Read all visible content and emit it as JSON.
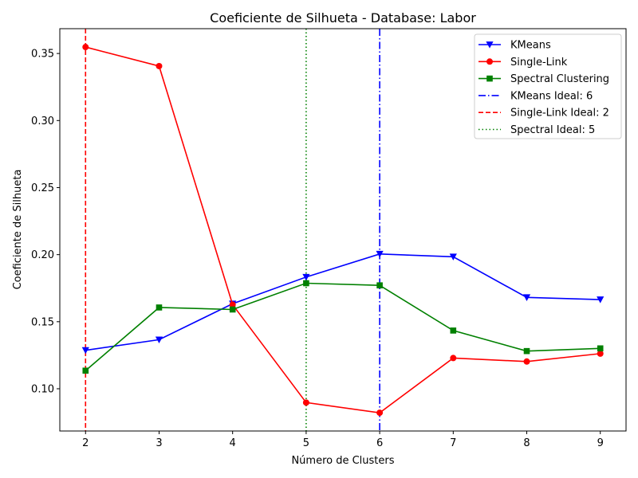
{
  "chart_data": {
    "type": "line",
    "title": "Coeficiente de Silhueta - Database: Labor",
    "xlabel": "Número de Clusters",
    "ylabel": "Coeficiente de Silhueta",
    "x": [
      2,
      3,
      4,
      5,
      6,
      7,
      8,
      9
    ],
    "xlim": [
      1.65,
      9.35
    ],
    "ylim": [
      0.0685,
      0.3685
    ],
    "xticks": [
      "2",
      "3",
      "4",
      "5",
      "6",
      "7",
      "8",
      "9"
    ],
    "yticks": [
      "0.10",
      "0.15",
      "0.20",
      "0.25",
      "0.30",
      "0.35"
    ],
    "grid": false,
    "legend_position": "top-right",
    "series": [
      {
        "name": "KMeans",
        "color": "#0000ff",
        "marker": "triangle-down",
        "values": [
          0.1287,
          0.1366,
          0.1634,
          0.1833,
          0.2005,
          0.1984,
          0.1681,
          0.1665
        ]
      },
      {
        "name": "Single-Link",
        "color": "#ff0000",
        "marker": "circle",
        "values": [
          0.3548,
          0.3406,
          0.1627,
          0.0897,
          0.0821,
          0.1229,
          0.1203,
          0.1262
        ]
      },
      {
        "name": "Spectral Clustering",
        "color": "#008000",
        "marker": "square",
        "values": [
          0.1135,
          0.1606,
          0.1591,
          0.1787,
          0.1771,
          0.1434,
          0.1281,
          0.1301
        ]
      }
    ],
    "vlines": [
      {
        "name": "KMeans Ideal: 6",
        "x": 6,
        "color": "#0000ff",
        "style": "dashdot"
      },
      {
        "name": "Single-Link Ideal: 2",
        "x": 2,
        "color": "#ff0000",
        "style": "dashed"
      },
      {
        "name": "Spectral Ideal: 5",
        "x": 5,
        "color": "#008000",
        "style": "dotted"
      }
    ]
  }
}
